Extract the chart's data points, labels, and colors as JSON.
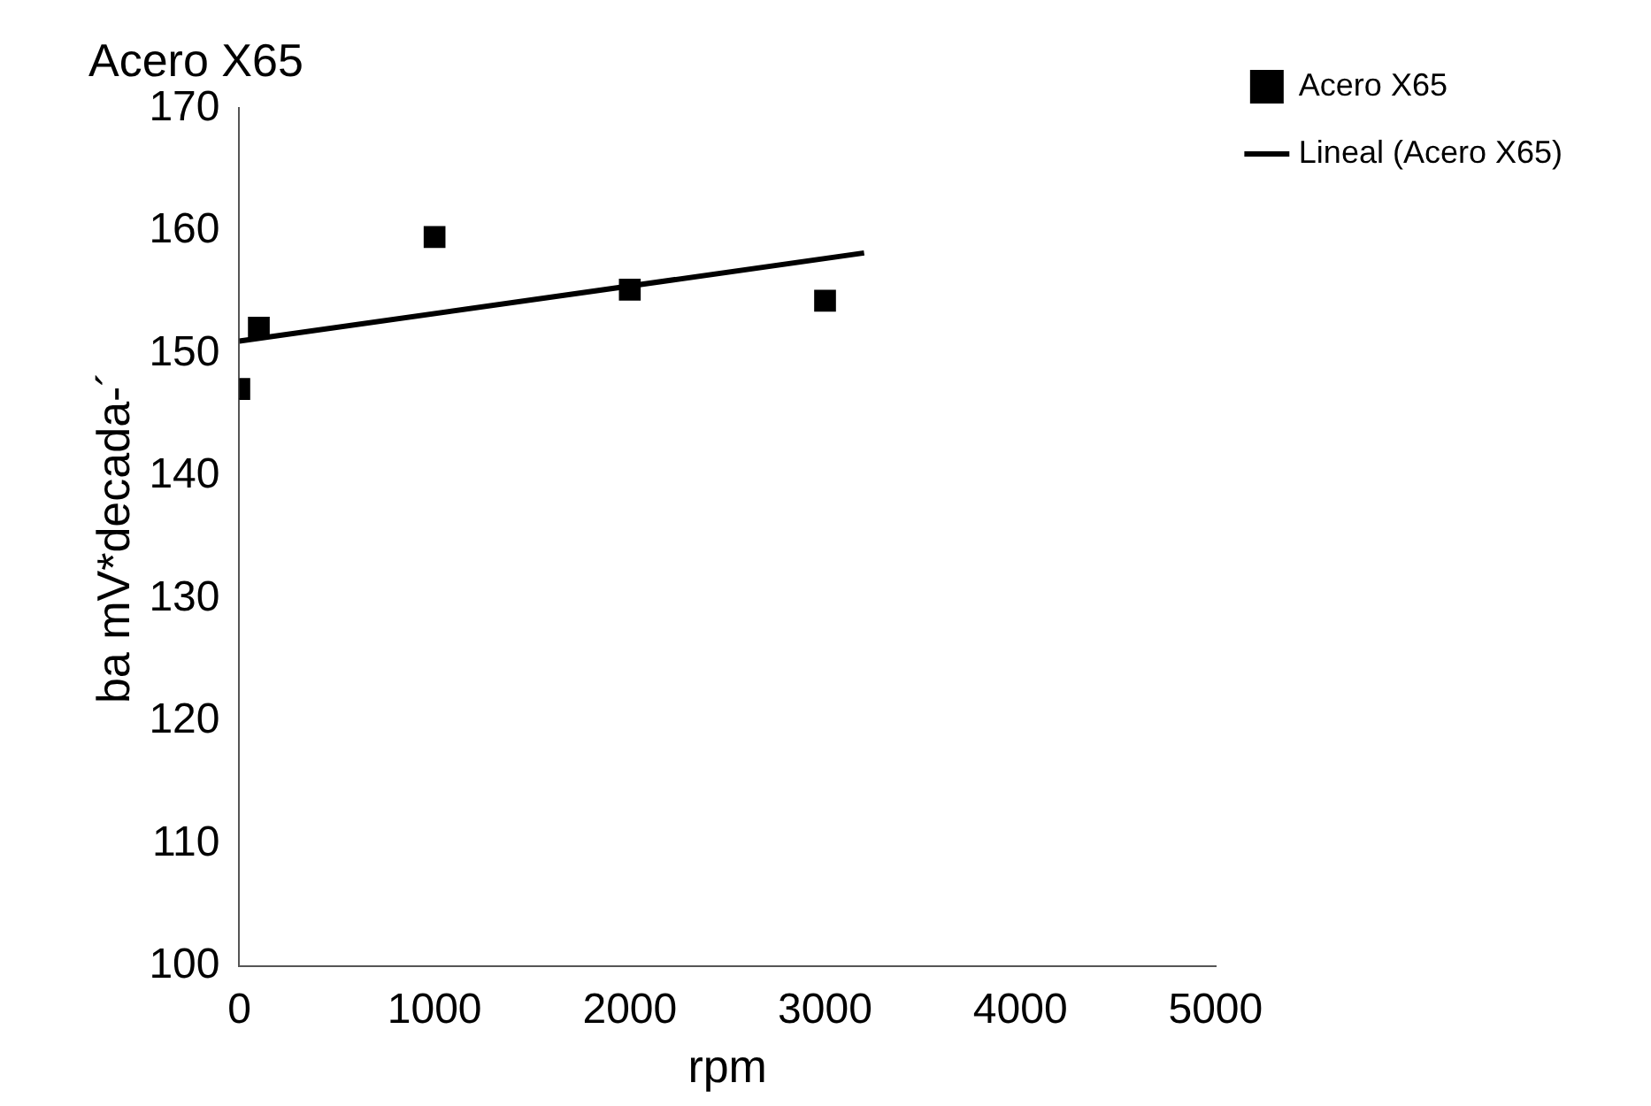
{
  "chart_data": {
    "type": "scatter",
    "title": "Acero X65",
    "xlabel": "rpm",
    "ylabel": "ba mV*decada-´",
    "xlim": [
      0,
      5000
    ],
    "xticks": [
      0,
      1000,
      2000,
      3000,
      4000,
      5000
    ],
    "ylim": [
      100,
      170
    ],
    "yticks": [
      100,
      110,
      120,
      130,
      140,
      150,
      160,
      170
    ],
    "grid": false,
    "legend": "right",
    "series": [
      {
        "name": "Acero X65",
        "marker": "square",
        "color": "#000000",
        "x": [
          0,
          100,
          1000,
          2000,
          3000
        ],
        "values": [
          147.1,
          152.1,
          159.5,
          155.2,
          154.3
        ]
      },
      {
        "name": "Lineal (Acero X65)",
        "type": "line",
        "marker": "none",
        "color": "#000000",
        "x": [
          0,
          3200
        ],
        "values": [
          151,
          158.2
        ]
      }
    ]
  }
}
